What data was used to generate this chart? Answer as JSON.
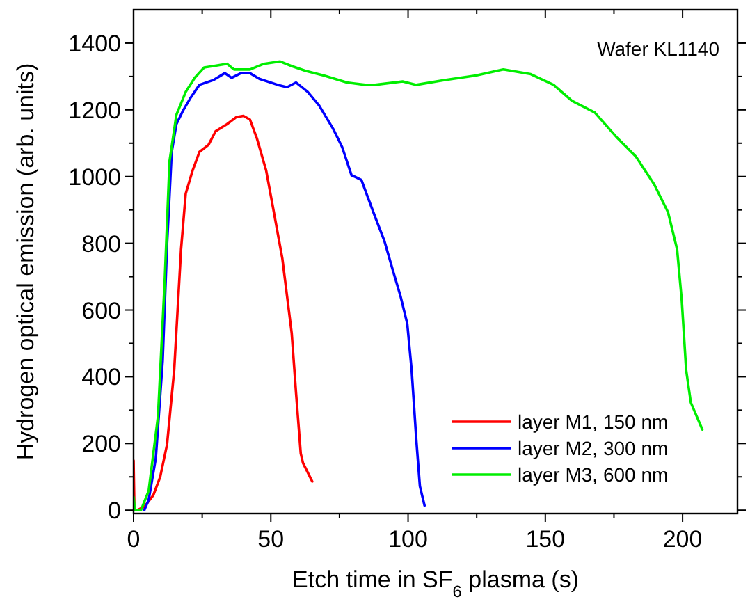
{
  "chart_data": {
    "type": "line",
    "xlabel": "Etch time in SF$_{6}$ plasma (s)",
    "ylabel": "Hydrogen optical emission (arb. units)",
    "annotations": [
      "Wafer KL1140"
    ],
    "xlim": [
      0,
      220
    ],
    "ylim": [
      -10,
      1500
    ],
    "xticks": [
      0,
      {
        "value": 25,
        "label": null
      },
      50,
      {
        "value": 75,
        "label": null
      },
      100,
      {
        "value": 125,
        "label": null
      },
      150,
      {
        "value": 175,
        "label": null
      },
      200
    ],
    "yticks": [
      0,
      {
        "value": 100,
        "label": null
      },
      200,
      {
        "value": 300,
        "label": null
      },
      400,
      {
        "value": 500,
        "label": null
      },
      600,
      {
        "value": 700,
        "label": null
      },
      800,
      {
        "value": 900,
        "label": null
      },
      1000,
      {
        "value": 1100,
        "label": null
      },
      1200,
      {
        "value": 1300,
        "label": null
      },
      1400
    ],
    "grid": false,
    "legend": "bottom right",
    "marker": "none",
    "line_style": "solid",
    "series": [
      {
        "name": "layer M1, 150 nm",
        "color": "#ff0000",
        "x": [
          0,
          0.3,
          1.3,
          3.9,
          7.2,
          9.7,
          12.2,
          14.8,
          17.3,
          19,
          21.5,
          24,
          27.3,
          29.9,
          34,
          37.4,
          40,
          42.4,
          44.9,
          48.3,
          50.8,
          54.2,
          57.6,
          59.2,
          60.9,
          61.7,
          65.1
        ],
        "values": [
          149,
          3,
          0,
          10,
          45,
          100,
          197,
          420,
          782,
          949,
          1018,
          1074,
          1095,
          1136,
          1157,
          1178,
          1182,
          1171,
          1115,
          1018,
          907,
          754,
          531,
          350,
          170,
          142,
          86
        ]
      },
      {
        "name": "layer M2, 300 nm",
        "color": "#0000ff",
        "x": [
          3.9,
          5.5,
          8.1,
          10.6,
          12.2,
          13.9,
          15.6,
          18.1,
          20.6,
          24,
          29,
          33.2,
          35.7,
          39.1,
          42.4,
          45.8,
          52.5,
          55.9,
          59.2,
          63.4,
          67.6,
          72.7,
          76,
          79.4,
          83,
          88,
          91.3,
          94.7,
          97.2,
          99.7,
          101.3,
          103,
          104.3,
          106
        ],
        "values": [
          0,
          31,
          156,
          448,
          796,
          1074,
          1157,
          1199,
          1234,
          1275,
          1289,
          1310,
          1296,
          1310,
          1310,
          1293,
          1275,
          1268,
          1282,
          1254,
          1213,
          1143,
          1088,
          1004,
          990,
          879,
          809,
          712,
          643,
          559,
          420,
          211,
          72,
          14
        ]
      },
      {
        "name": "layer M3, 600 nm",
        "color": "#00ee00",
        "x": [
          0,
          0.5,
          2.7,
          5.5,
          8.9,
          11.4,
          13.1,
          15.6,
          19,
          22.3,
          25.7,
          29,
          34,
          36.6,
          42.4,
          47.5,
          53.4,
          57.6,
          62.6,
          69.3,
          77.7,
          84.4,
          88,
          98,
          103,
          113,
          124.7,
          134.7,
          144.7,
          153,
          159.7,
          168,
          176.3,
          183,
          189.7,
          194.7,
          198,
          199.7,
          201.3,
          203,
          207.2
        ],
        "values": [
          40,
          0,
          0,
          58,
          281,
          698,
          1046,
          1185,
          1254,
          1296,
          1327,
          1331,
          1338,
          1321,
          1321,
          1338,
          1345,
          1331,
          1317,
          1303,
          1282,
          1275,
          1275,
          1285,
          1275,
          1289,
          1303,
          1321,
          1307,
          1275,
          1227,
          1192,
          1115,
          1060,
          976,
          893,
          782,
          629,
          420,
          323,
          242
        ]
      }
    ]
  }
}
